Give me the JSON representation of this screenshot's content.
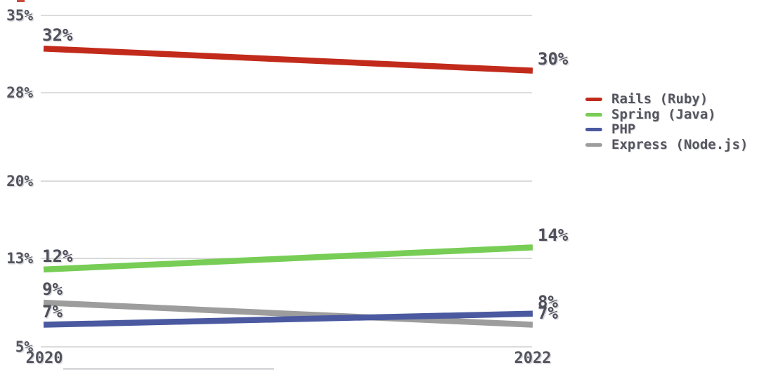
{
  "chart_data": {
    "type": "line",
    "title": "",
    "xlabel": "",
    "ylabel": "",
    "x_tick_labels": [
      "2020",
      "2022"
    ],
    "y_ticks": [
      {
        "label": "35%",
        "value": 35
      },
      {
        "label": "28%",
        "value": 28
      },
      {
        "label": "20%",
        "value": 20
      },
      {
        "label": "13%",
        "value": 13
      },
      {
        "label": "5%",
        "value": 5
      }
    ],
    "ylim": [
      5,
      35
    ],
    "grid": "horizontal",
    "legend_position": "right",
    "series": [
      {
        "name": "Rails (Ruby)",
        "color": "#c22b1b",
        "values": [
          32,
          30
        ],
        "point_labels": [
          "32%",
          "30%"
        ]
      },
      {
        "name": "Spring (Java)",
        "color": "#77cd55",
        "values": [
          12,
          14
        ],
        "point_labels": [
          "12%",
          "14%"
        ]
      },
      {
        "name": "PHP",
        "color": "#4a59a0",
        "values": [
          7,
          8
        ],
        "point_labels": [
          "7%",
          "8%"
        ]
      },
      {
        "name": "Express (Node.js)",
        "color": "#9d9d9d",
        "values": [
          9,
          7
        ],
        "point_labels": [
          "9%",
          "7%"
        ]
      }
    ]
  },
  "colors": {
    "grid": "#cfcfcf",
    "text": "#55555f",
    "background": "#ffffff"
  }
}
